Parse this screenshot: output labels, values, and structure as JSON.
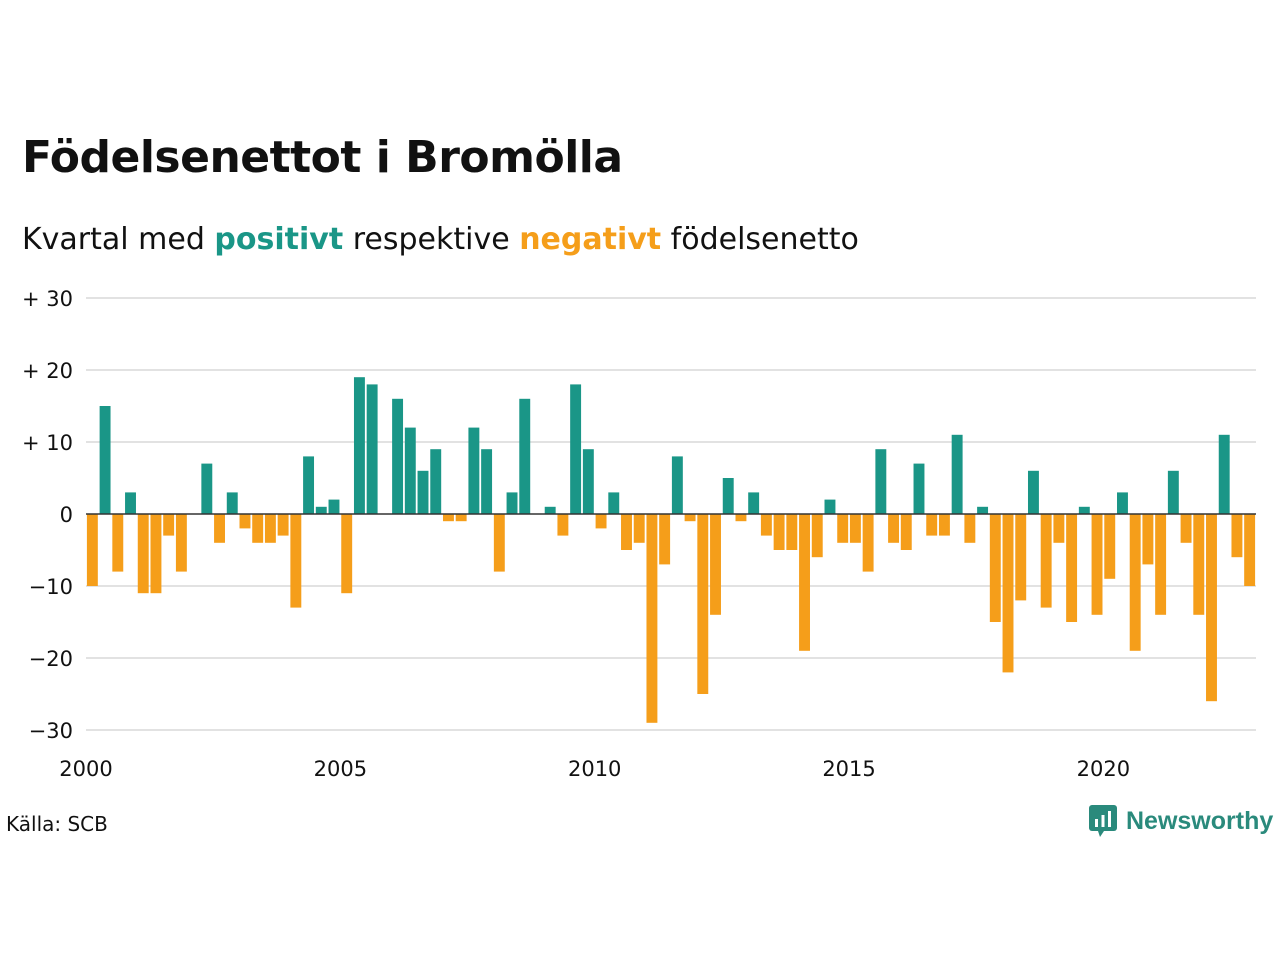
{
  "title": "Födelsenettot i Bromölla",
  "subtitle": {
    "prefix": "Kvartal med ",
    "positive": "positivt",
    "middle": " respektive ",
    "negative": "negativt",
    "suffix": " födelsenetto"
  },
  "source": "Källa: SCB",
  "brand": "Newsworthy",
  "colors": {
    "positive": "#1a9687",
    "negative": "#f59e1a",
    "grid": "#e2e2e2",
    "zero": "#333333",
    "brand": "#2a8a7c"
  },
  "chart_data": {
    "type": "bar",
    "x_start": 2000,
    "periods_per_year": 4,
    "xlim": [
      2000,
      2023
    ],
    "ylim": [
      -30,
      30
    ],
    "y_ticks": [
      30,
      20,
      10,
      0,
      -10,
      -20,
      -30
    ],
    "y_tick_labels": [
      "+ 30",
      "+ 20",
      "+ 10",
      "0",
      "−10",
      "−20",
      "−30"
    ],
    "x_ticks": [
      2000,
      2005,
      2010,
      2015,
      2020
    ],
    "x_tick_labels": [
      "2000",
      "2005",
      "2010",
      "2015",
      "2020"
    ],
    "grid": true,
    "values": [
      -10,
      15,
      -8,
      3,
      -11,
      -11,
      -3,
      -8,
      0,
      7,
      -4,
      3,
      -2,
      -4,
      -4,
      -3,
      -13,
      8,
      1,
      2,
      -11,
      19,
      18,
      0,
      16,
      12,
      6,
      9,
      -1,
      -1,
      12,
      9,
      -8,
      3,
      16,
      0,
      1,
      -3,
      18,
      9,
      -2,
      3,
      -5,
      -4,
      -29,
      -7,
      8,
      -1,
      -25,
      -14,
      5,
      -1,
      3,
      -3,
      -5,
      -5,
      -19,
      -6,
      2,
      -4,
      -4,
      -8,
      9,
      -4,
      -5,
      7,
      -3,
      -3,
      11,
      -4,
      1,
      -15,
      -22,
      -12,
      6,
      -13,
      -4,
      -15,
      1,
      -14,
      -9,
      3,
      -19,
      -7,
      -14,
      6,
      -4,
      -14,
      -26,
      11,
      -6,
      -10
    ]
  }
}
